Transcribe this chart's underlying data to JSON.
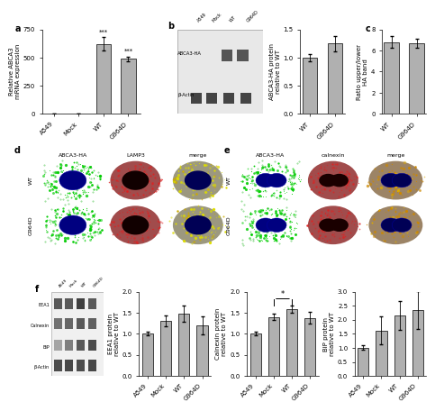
{
  "panel_a": {
    "categories": [
      "A549",
      "Mock",
      "WT",
      "G964D"
    ],
    "values": [
      0,
      0,
      620,
      490
    ],
    "errors": [
      0,
      0,
      60,
      20
    ],
    "ylabel": "Relative ABCA3\nmRNA expression",
    "ylim": [
      0,
      750
    ],
    "yticks": [
      0,
      250,
      500,
      750
    ],
    "bar_color": "#b0b0b0",
    "title": "a"
  },
  "panel_b_bar": {
    "categories": [
      "WT",
      "G964D"
    ],
    "values": [
      1.0,
      1.25
    ],
    "errors": [
      0.06,
      0.14
    ],
    "ylabel": "ABCA3-HA protein\nrelative to WT",
    "ylim": [
      0.0,
      1.5
    ],
    "yticks": [
      0.0,
      0.5,
      1.0,
      1.5
    ],
    "bar_color": "#b0b0b0"
  },
  "panel_c": {
    "categories": [
      "WT",
      "G964D"
    ],
    "values": [
      6.8,
      6.7
    ],
    "errors": [
      0.55,
      0.42
    ],
    "ylabel": "Ratio upper/lower\nHA band",
    "ylim": [
      0,
      8
    ],
    "yticks": [
      0,
      2,
      4,
      6,
      8
    ],
    "bar_color": "#b0b0b0",
    "title": "c"
  },
  "panel_f_eea1": {
    "categories": [
      "A549",
      "Mock",
      "WT",
      "G964D"
    ],
    "values": [
      1.0,
      1.3,
      1.48,
      1.2
    ],
    "errors": [
      0.04,
      0.13,
      0.2,
      0.22
    ],
    "ylabel": "EEA1 protein\nrelative to WT",
    "ylim": [
      0.0,
      2.0
    ],
    "yticks": [
      0.0,
      0.5,
      1.0,
      1.5,
      2.0
    ],
    "bar_color": "#b0b0b0"
  },
  "panel_f_calnexin": {
    "categories": [
      "A549",
      "Mock",
      "WT",
      "G964D"
    ],
    "values": [
      1.0,
      1.4,
      1.58,
      1.38
    ],
    "errors": [
      0.04,
      0.07,
      0.09,
      0.13
    ],
    "ylabel": "Calnexin protein\nrelative to WT",
    "ylim": [
      0.0,
      2.0
    ],
    "yticks": [
      0.0,
      0.5,
      1.0,
      1.5,
      2.0
    ],
    "bar_color": "#b0b0b0",
    "sig": "*"
  },
  "panel_f_bip": {
    "categories": [
      "A549",
      "Mock",
      "WT",
      "G964D"
    ],
    "values": [
      1.0,
      1.62,
      2.15,
      2.35
    ],
    "errors": [
      0.08,
      0.5,
      0.5,
      0.68
    ],
    "ylabel": "BiP protein\nrelative to WT",
    "ylim": [
      0.0,
      3.0
    ],
    "yticks": [
      0.0,
      0.5,
      1.0,
      1.5,
      2.0,
      2.5,
      3.0
    ],
    "bar_color": "#b0b0b0"
  },
  "global": {
    "bg_color": "#ffffff",
    "bar_color": "#b0b0b0",
    "tick_label_size": 5,
    "axis_label_size": 5,
    "title_size": 7,
    "errorbar_capsize": 1.5,
    "errorbar_lw": 0.6
  }
}
